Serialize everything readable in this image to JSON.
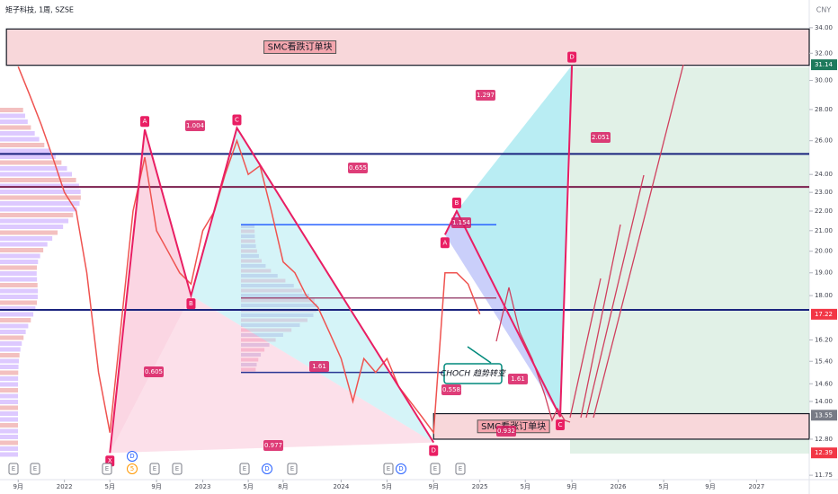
{
  "chart_data": {
    "type": "line",
    "title": "矩子科技, 1周, SZSE",
    "currency": "CNY",
    "log_scale": true,
    "grid": false,
    "xlim": [
      "2021-07-15",
      "2027-05-20"
    ],
    "xticks": [
      {
        "value": "2021-09",
        "label": "9月"
      },
      {
        "value": "2022-01",
        "label": "2022"
      },
      {
        "value": "2022-05",
        "label": "5月"
      },
      {
        "value": "2022-09",
        "label": "9月"
      },
      {
        "value": "2023-01",
        "label": "2023"
      },
      {
        "value": "2023-05",
        "label": "5月"
      },
      {
        "value": "2023-08",
        "label": "8月"
      },
      {
        "value": "2024-01",
        "label": "2024"
      },
      {
        "value": "2024-05",
        "label": "5月"
      },
      {
        "value": "2024-09",
        "label": "9月"
      },
      {
        "value": "2025-01",
        "label": "2025"
      },
      {
        "value": "2025-05",
        "label": "5月"
      },
      {
        "value": "2025-09",
        "label": "9月"
      },
      {
        "value": "2026-01",
        "label": "2026"
      },
      {
        "value": "2026-05",
        "label": "5月"
      },
      {
        "value": "2026-09",
        "label": "9月"
      },
      {
        "value": "2027-01",
        "label": "2027"
      }
    ],
    "ylim": [
      11.48,
      34.65
    ],
    "yticks": [
      {
        "value": 34,
        "label": "34.00"
      },
      {
        "value": 32,
        "label": "32.00"
      },
      {
        "value": 30,
        "label": "30.00"
      },
      {
        "value": 28,
        "label": "28.00"
      },
      {
        "value": 26,
        "label": "26.00"
      },
      {
        "value": 24,
        "label": "24.00"
      },
      {
        "value": 23,
        "label": "23.00"
      },
      {
        "value": 22,
        "label": "22.00"
      },
      {
        "value": 21,
        "label": "21.00"
      },
      {
        "value": 20,
        "label": "20.00"
      },
      {
        "value": 19,
        "label": "19.00"
      },
      {
        "value": 18,
        "label": "18.00"
      },
      {
        "value": 16.2,
        "label": "16.20"
      },
      {
        "value": 15.4,
        "label": "15.40"
      },
      {
        "value": 14.6,
        "label": "14.60"
      },
      {
        "value": 14,
        "label": "14.00"
      },
      {
        "value": 12.8,
        "label": "12.80"
      },
      {
        "value": 11.75,
        "label": "11.75"
      }
    ],
    "price_labels": [
      {
        "value": 31.14,
        "color": "#1e7a5c"
      },
      {
        "value": 17.22,
        "color": "#f23645"
      },
      {
        "value": 13.55,
        "color": "#787b86"
      },
      {
        "value": 12.39,
        "color": "#f23645"
      }
    ],
    "series": [
      {
        "name": "矩子科技",
        "color": "#ef5350",
        "x": [
          "2021-09",
          "2021-10",
          "2021-11",
          "2021-12",
          "2022-01",
          "2022-02",
          "2022-03",
          "2022-04",
          "2022-05",
          "2022-06",
          "2022-07",
          "2022-08",
          "2022-09",
          "2022-10",
          "2022-11",
          "2022-12",
          "2023-01",
          "2023-02",
          "2023-03",
          "2023-04",
          "2023-05",
          "2023-06",
          "2023-07",
          "2023-08",
          "2023-09",
          "2023-10",
          "2023-11",
          "2023-12",
          "2024-01",
          "2024-02",
          "2024-03",
          "2024-04",
          "2024-05",
          "2024-06",
          "2024-07",
          "2024-08",
          "2024-09",
          "2024-10",
          "2024-11",
          "2024-12",
          "2025-01"
        ],
        "values": [
          31,
          29,
          27,
          25,
          23,
          22,
          19,
          15,
          13,
          17,
          22,
          25,
          21,
          20,
          19,
          18.5,
          21,
          22,
          24,
          26,
          24,
          24.5,
          22,
          19.5,
          19,
          18,
          17.5,
          16.5,
          15.5,
          14,
          15.5,
          15,
          15.5,
          14.5,
          14,
          13.5,
          13,
          19,
          19,
          18.5,
          17.22
        ]
      }
    ],
    "zones": [
      {
        "label": "SMC看跌订单块",
        "low": 31.1,
        "high": 33.9,
        "x0": "2021-08",
        "fill": "#f8d7da"
      },
      {
        "label": "SMC看涨订单块",
        "low": 12.8,
        "high": 13.6,
        "x0": "2024-09",
        "fill": "#f8d7da"
      }
    ],
    "levels": [
      {
        "value": 25.2,
        "color": "#1a237e"
      },
      {
        "value": 23.3,
        "color": "#7b1f4e"
      },
      {
        "value": 17.4,
        "color": "#1a237e"
      },
      {
        "value": 21.3,
        "color": "#2962ff"
      },
      {
        "value": 17.9,
        "color": "#a0527a"
      },
      {
        "value": 15.0,
        "color": "#283593"
      }
    ],
    "patterns": [
      {
        "color": "#e91e63",
        "points": [
          {
            "label": "X",
            "x": "2022-05",
            "y": 12.39
          },
          {
            "label": "A",
            "x": "2022-08",
            "y": 26.7
          },
          {
            "label": "B",
            "x": "2022-12",
            "y": 18.0
          },
          {
            "label": "C",
            "x": "2023-04",
            "y": 26.8
          },
          {
            "label": "D",
            "x": "2024-09",
            "y": 12.7
          }
        ]
      },
      {
        "color": "#e91e63",
        "points": [
          {
            "label": "A",
            "x": "2024-10",
            "y": 20.8
          },
          {
            "label": "B",
            "x": "2024-11",
            "y": 22.0
          },
          {
            "label": "C",
            "x": "2025-08",
            "y": 13.5
          },
          {
            "label": "D",
            "x": "2025-09",
            "y": 31.1
          }
        ]
      }
    ],
    "ratios": [
      1.004,
      1.297,
      0.655,
      2.051,
      1.154,
      0.605,
      1.61,
      0.558,
      0.977,
      0.932,
      1.61
    ],
    "annotation": "CHOCH  趋势转变",
    "event_markers": [
      "E",
      "E",
      "E",
      "5",
      "E",
      "E",
      "E",
      "D",
      "E",
      "E",
      "D",
      "E",
      "E"
    ],
    "dividend_marker": "D"
  }
}
